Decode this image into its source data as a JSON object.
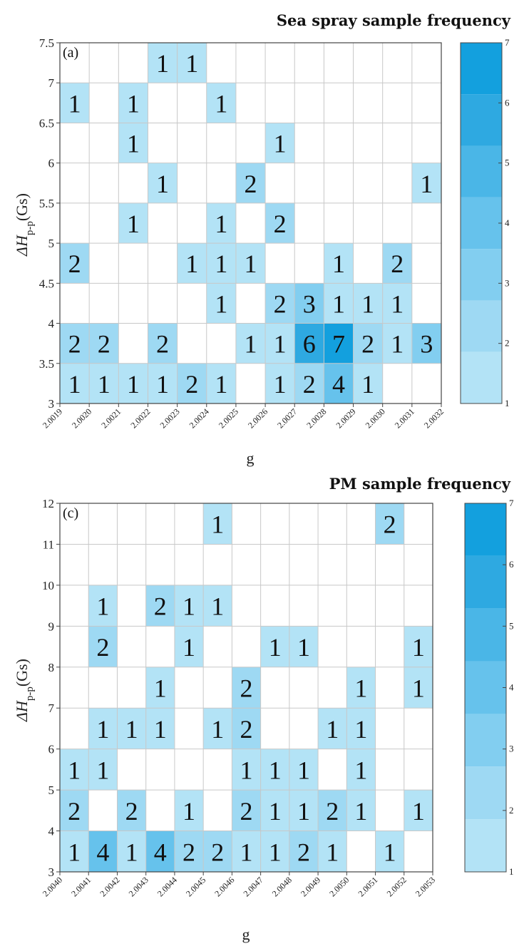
{
  "colors": {
    "scale": [
      "#b3e3f6",
      "#9ed9f3",
      "#82cef0",
      "#66c2ec",
      "#4ab6e7",
      "#2ea9e1",
      "#13a0de"
    ],
    "grid": "#c8c8c8",
    "frame": "#444444"
  },
  "chart_data": [
    {
      "type": "heatmap",
      "title": "Sea spray sample frequency",
      "panel_label": "(a)",
      "xlabel": "g",
      "ylabel_main": "ΔH",
      "ylabel_sub": "p-p",
      "ylabel_unit": "(Gs)",
      "x_ticks": [
        "2.0019",
        "2.0020",
        "2.0021",
        "2.0022",
        "2.0023",
        "2.0024",
        "2.0025",
        "2.0026",
        "2.0027",
        "2.0028",
        "2.0029",
        "2.0030",
        "2.0031",
        "2.0032"
      ],
      "y_ticks": [
        "3",
        "3.5",
        "4",
        "4.5",
        "5",
        "5.5",
        "6",
        "6.5",
        "7",
        "7.5"
      ],
      "colorbar_ticks": [
        "1",
        "2",
        "3",
        "4",
        "5",
        "6",
        "7"
      ],
      "colorbar_range": [
        1,
        7
      ],
      "cells": [
        {
          "x": 2.0019,
          "y": 3.0,
          "value": 1
        },
        {
          "x": 2.002,
          "y": 3.0,
          "value": 1
        },
        {
          "x": 2.0021,
          "y": 3.0,
          "value": 1
        },
        {
          "x": 2.0022,
          "y": 3.0,
          "value": 1
        },
        {
          "x": 2.0023,
          "y": 3.0,
          "value": 2
        },
        {
          "x": 2.0024,
          "y": 3.0,
          "value": 1
        },
        {
          "x": 2.0026,
          "y": 3.0,
          "value": 1
        },
        {
          "x": 2.0027,
          "y": 3.0,
          "value": 2
        },
        {
          "x": 2.0028,
          "y": 3.0,
          "value": 4
        },
        {
          "x": 2.0029,
          "y": 3.0,
          "value": 1
        },
        {
          "x": 2.0019,
          "y": 3.5,
          "value": 2
        },
        {
          "x": 2.002,
          "y": 3.5,
          "value": 2
        },
        {
          "x": 2.0022,
          "y": 3.5,
          "value": 2
        },
        {
          "x": 2.0025,
          "y": 3.5,
          "value": 1
        },
        {
          "x": 2.0026,
          "y": 3.5,
          "value": 1
        },
        {
          "x": 2.0027,
          "y": 3.5,
          "value": 6
        },
        {
          "x": 2.0028,
          "y": 3.5,
          "value": 7
        },
        {
          "x": 2.0029,
          "y": 3.5,
          "value": 2
        },
        {
          "x": 2.003,
          "y": 3.5,
          "value": 1
        },
        {
          "x": 2.0031,
          "y": 3.5,
          "value": 3
        },
        {
          "x": 2.0024,
          "y": 4.0,
          "value": 1
        },
        {
          "x": 2.0026,
          "y": 4.0,
          "value": 2
        },
        {
          "x": 2.0027,
          "y": 4.0,
          "value": 3
        },
        {
          "x": 2.0028,
          "y": 4.0,
          "value": 1
        },
        {
          "x": 2.0029,
          "y": 4.0,
          "value": 1
        },
        {
          "x": 2.003,
          "y": 4.0,
          "value": 1
        },
        {
          "x": 2.0019,
          "y": 4.5,
          "value": 2
        },
        {
          "x": 2.0023,
          "y": 4.5,
          "value": 1
        },
        {
          "x": 2.0024,
          "y": 4.5,
          "value": 1
        },
        {
          "x": 2.0025,
          "y": 4.5,
          "value": 1
        },
        {
          "x": 2.0028,
          "y": 4.5,
          "value": 1
        },
        {
          "x": 2.003,
          "y": 4.5,
          "value": 2
        },
        {
          "x": 2.0021,
          "y": 5.0,
          "value": 1
        },
        {
          "x": 2.0024,
          "y": 5.0,
          "value": 1
        },
        {
          "x": 2.0026,
          "y": 5.0,
          "value": 2
        },
        {
          "x": 2.0022,
          "y": 5.5,
          "value": 1
        },
        {
          "x": 2.0025,
          "y": 5.5,
          "value": 2
        },
        {
          "x": 2.0031,
          "y": 5.5,
          "value": 1
        },
        {
          "x": 2.0021,
          "y": 6.0,
          "value": 1
        },
        {
          "x": 2.0026,
          "y": 6.0,
          "value": 1
        },
        {
          "x": 2.0019,
          "y": 6.5,
          "value": 1
        },
        {
          "x": 2.0021,
          "y": 6.5,
          "value": 1
        },
        {
          "x": 2.0024,
          "y": 6.5,
          "value": 1
        },
        {
          "x": 2.0022,
          "y": 7.0,
          "value": 1
        },
        {
          "x": 2.0023,
          "y": 7.0,
          "value": 1
        }
      ]
    },
    {
      "type": "heatmap",
      "title": "PM sample frequency",
      "panel_label": "(c)",
      "xlabel": "g",
      "ylabel_main": "ΔH",
      "ylabel_sub": "p-p",
      "ylabel_unit": "(Gs)",
      "x_ticks": [
        "2.0040",
        "2.0041",
        "2.0042",
        "2.0043",
        "2.0044",
        "2.0045",
        "2.0046",
        "2.0047",
        "2.0048",
        "2.0049",
        "2.0050",
        "2.0051",
        "2.0052",
        "2.0053"
      ],
      "y_ticks": [
        "3",
        "4",
        "5",
        "6",
        "7",
        "8",
        "9",
        "10",
        "11",
        "12"
      ],
      "colorbar_ticks": [
        "1",
        "2",
        "3",
        "4",
        "5",
        "6",
        "7"
      ],
      "colorbar_range": [
        1,
        7
      ],
      "cells": [
        {
          "x": 2.004,
          "y": 3,
          "value": 1
        },
        {
          "x": 2.0041,
          "y": 3,
          "value": 4
        },
        {
          "x": 2.0042,
          "y": 3,
          "value": 1
        },
        {
          "x": 2.0043,
          "y": 3,
          "value": 4
        },
        {
          "x": 2.0044,
          "y": 3,
          "value": 2
        },
        {
          "x": 2.0045,
          "y": 3,
          "value": 2
        },
        {
          "x": 2.0046,
          "y": 3,
          "value": 1
        },
        {
          "x": 2.0047,
          "y": 3,
          "value": 1
        },
        {
          "x": 2.0048,
          "y": 3,
          "value": 2
        },
        {
          "x": 2.0049,
          "y": 3,
          "value": 1
        },
        {
          "x": 2.0051,
          "y": 3,
          "value": 1
        },
        {
          "x": 2.004,
          "y": 4,
          "value": 2
        },
        {
          "x": 2.0042,
          "y": 4,
          "value": 2
        },
        {
          "x": 2.0044,
          "y": 4,
          "value": 1
        },
        {
          "x": 2.0046,
          "y": 4,
          "value": 2
        },
        {
          "x": 2.0047,
          "y": 4,
          "value": 1
        },
        {
          "x": 2.0048,
          "y": 4,
          "value": 1
        },
        {
          "x": 2.0049,
          "y": 4,
          "value": 2
        },
        {
          "x": 2.005,
          "y": 4,
          "value": 1
        },
        {
          "x": 2.0052,
          "y": 4,
          "value": 1
        },
        {
          "x": 2.004,
          "y": 5,
          "value": 1
        },
        {
          "x": 2.0041,
          "y": 5,
          "value": 1
        },
        {
          "x": 2.0046,
          "y": 5,
          "value": 1
        },
        {
          "x": 2.0047,
          "y": 5,
          "value": 1
        },
        {
          "x": 2.0048,
          "y": 5,
          "value": 1
        },
        {
          "x": 2.005,
          "y": 5,
          "value": 1
        },
        {
          "x": 2.0041,
          "y": 6,
          "value": 1
        },
        {
          "x": 2.0042,
          "y": 6,
          "value": 1
        },
        {
          "x": 2.0043,
          "y": 6,
          "value": 1
        },
        {
          "x": 2.0045,
          "y": 6,
          "value": 1
        },
        {
          "x": 2.0046,
          "y": 6,
          "value": 2
        },
        {
          "x": 2.0049,
          "y": 6,
          "value": 1
        },
        {
          "x": 2.005,
          "y": 6,
          "value": 1
        },
        {
          "x": 2.0043,
          "y": 7,
          "value": 1
        },
        {
          "x": 2.0046,
          "y": 7,
          "value": 2
        },
        {
          "x": 2.005,
          "y": 7,
          "value": 1
        },
        {
          "x": 2.0052,
          "y": 7,
          "value": 1
        },
        {
          "x": 2.0041,
          "y": 8,
          "value": 2
        },
        {
          "x": 2.0044,
          "y": 8,
          "value": 1
        },
        {
          "x": 2.0047,
          "y": 8,
          "value": 1
        },
        {
          "x": 2.0048,
          "y": 8,
          "value": 1
        },
        {
          "x": 2.0052,
          "y": 8,
          "value": 1
        },
        {
          "x": 2.0041,
          "y": 9,
          "value": 1
        },
        {
          "x": 2.0043,
          "y": 9,
          "value": 2
        },
        {
          "x": 2.0044,
          "y": 9,
          "value": 1
        },
        {
          "x": 2.0045,
          "y": 9,
          "value": 1
        },
        {
          "x": 2.0045,
          "y": 11,
          "value": 1
        },
        {
          "x": 2.0051,
          "y": 11,
          "value": 2
        }
      ]
    }
  ]
}
